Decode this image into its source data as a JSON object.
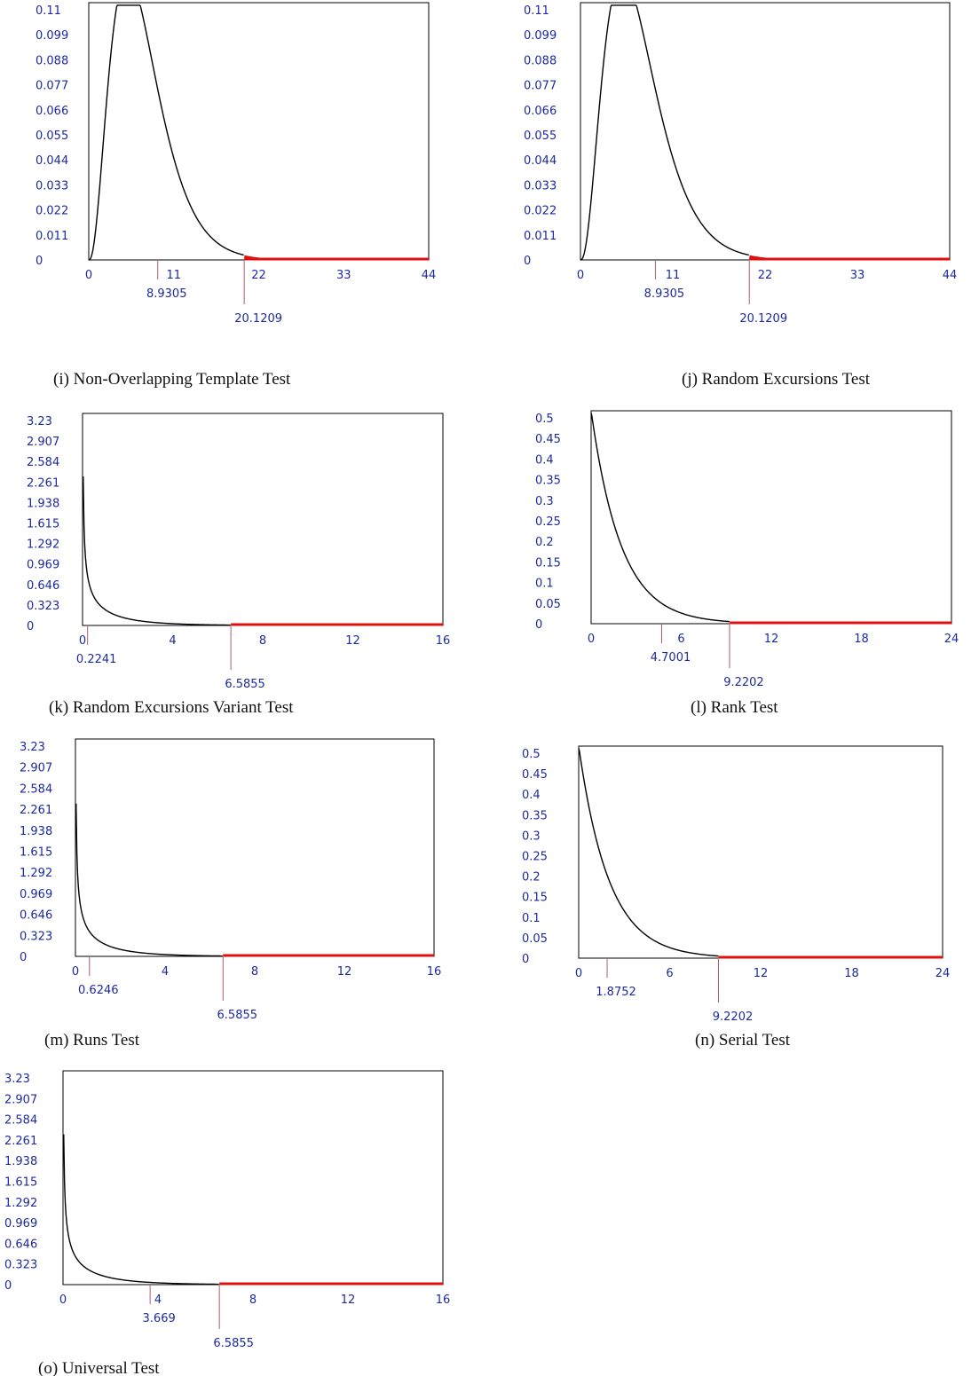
{
  "chart_data": [
    {
      "id": "i",
      "type": "area",
      "caption": "(i)  Non-Overlapping Template Test",
      "distribution": "chi-square",
      "xlim": [
        0,
        44
      ],
      "ylim": [
        0,
        0.11
      ],
      "xticks": [
        "0",
        "11",
        "22",
        "33",
        "44"
      ],
      "yticks": [
        "0.11",
        "0.099",
        "0.088",
        "0.077",
        "0.066",
        "0.055",
        "0.044",
        "0.033",
        "0.022",
        "0.011",
        "0"
      ],
      "statistic": 8.9305,
      "statistic_label": "8.9305",
      "critical": 20.1209,
      "critical_label": "20.1209",
      "curve_shape": {
        "k": 7
      },
      "grid": false,
      "critical_region_color": "#e01010"
    },
    {
      "id": "j",
      "type": "area",
      "caption": "(j)   Random Excursions Test",
      "distribution": "chi-square",
      "xlim": [
        0,
        44
      ],
      "ylim": [
        0,
        0.11
      ],
      "xticks": [
        "0",
        "11",
        "22",
        "33",
        "44"
      ],
      "yticks": [
        "0.11",
        "0.099",
        "0.088",
        "0.077",
        "0.066",
        "0.055",
        "0.044",
        "0.033",
        "0.022",
        "0.011",
        "0"
      ],
      "statistic": 8.9305,
      "statistic_label": "8.9305",
      "critical": 20.1209,
      "critical_label": "20.1209",
      "curve_shape": {
        "k": 7
      },
      "grid": false,
      "critical_region_color": "#e01010"
    },
    {
      "id": "k",
      "type": "area",
      "caption": "(k) Random Excursions Variant Test",
      "distribution": "chi-square",
      "xlim": [
        0,
        16
      ],
      "ylim": [
        0,
        3.23
      ],
      "xticks": [
        "0",
        "4",
        "8",
        "12",
        "16"
      ],
      "yticks": [
        "3.23",
        "2.907",
        "2.584",
        "2.261",
        "1.938",
        "1.615",
        "1.292",
        "0.969",
        "0.646",
        "0.323",
        "0"
      ],
      "statistic": 0.2241,
      "statistic_label": "0.2241",
      "critical": 6.5855,
      "critical_label": "6.5855",
      "curve_shape": {
        "k": 1
      },
      "grid": false,
      "critical_region_color": "#e01010"
    },
    {
      "id": "l",
      "type": "area",
      "caption": "(l)  Rank Test",
      "distribution": "chi-square",
      "xlim": [
        0,
        24
      ],
      "ylim": [
        0,
        0.5
      ],
      "xticks": [
        "0",
        "6",
        "12",
        "18",
        "24"
      ],
      "yticks": [
        "0.5",
        "0.45",
        "0.4",
        "0.35",
        "0.3",
        "0.25",
        "0.2",
        "0.15",
        "0.1",
        "0.05",
        "0"
      ],
      "statistic": 4.7001,
      "statistic_label": "4.7001",
      "critical": 9.2202,
      "critical_label": "9.2202",
      "curve_shape": {
        "k": 2
      },
      "grid": false,
      "critical_region_color": "#e01010"
    },
    {
      "id": "m",
      "type": "area",
      "caption": "(m) Runs Test",
      "distribution": "chi-square",
      "xlim": [
        0,
        16
      ],
      "ylim": [
        0,
        3.23
      ],
      "xticks": [
        "0",
        "4",
        "8",
        "12",
        "16"
      ],
      "yticks": [
        "3.23",
        "2.907",
        "2.584",
        "2.261",
        "1.938",
        "1.615",
        "1.292",
        "0.969",
        "0.646",
        "0.323",
        "0"
      ],
      "statistic": 0.6246,
      "statistic_label": "0.6246",
      "critical": 6.5855,
      "critical_label": "6.5855",
      "curve_shape": {
        "k": 1
      },
      "grid": false,
      "critical_region_color": "#e01010"
    },
    {
      "id": "n",
      "type": "area",
      "caption": "(n) Serial Test",
      "distribution": "chi-square",
      "xlim": [
        0,
        24
      ],
      "ylim": [
        0,
        0.5
      ],
      "xticks": [
        "0",
        "6",
        "12",
        "18",
        "24"
      ],
      "yticks": [
        "0.5",
        "0.45",
        "0.4",
        "0.35",
        "0.3",
        "0.25",
        "0.2",
        "0.15",
        "0.1",
        "0.05",
        "0"
      ],
      "statistic": 1.8752,
      "statistic_label": "1.8752",
      "critical": 9.2202,
      "critical_label": "9.2202",
      "curve_shape": {
        "k": 2
      },
      "grid": false,
      "critical_region_color": "#e01010"
    },
    {
      "id": "o",
      "type": "area",
      "caption": "(o)  Universal  Test",
      "distribution": "chi-square",
      "xlim": [
        0,
        16
      ],
      "ylim": [
        0,
        3.23
      ],
      "xticks": [
        "0",
        "4",
        "8",
        "12",
        "16"
      ],
      "yticks": [
        "3.23",
        "2.907",
        "2.584",
        "2.261",
        "1.938",
        "1.615",
        "1.292",
        "0.969",
        "0.646",
        "0.323",
        "0"
      ],
      "statistic": 3.669,
      "statistic_label": "3.669",
      "critical": 6.5855,
      "critical_label": "6.5855",
      "curve_shape": {
        "k": 1
      },
      "grid": false,
      "critical_region_color": "#e01010"
    }
  ]
}
